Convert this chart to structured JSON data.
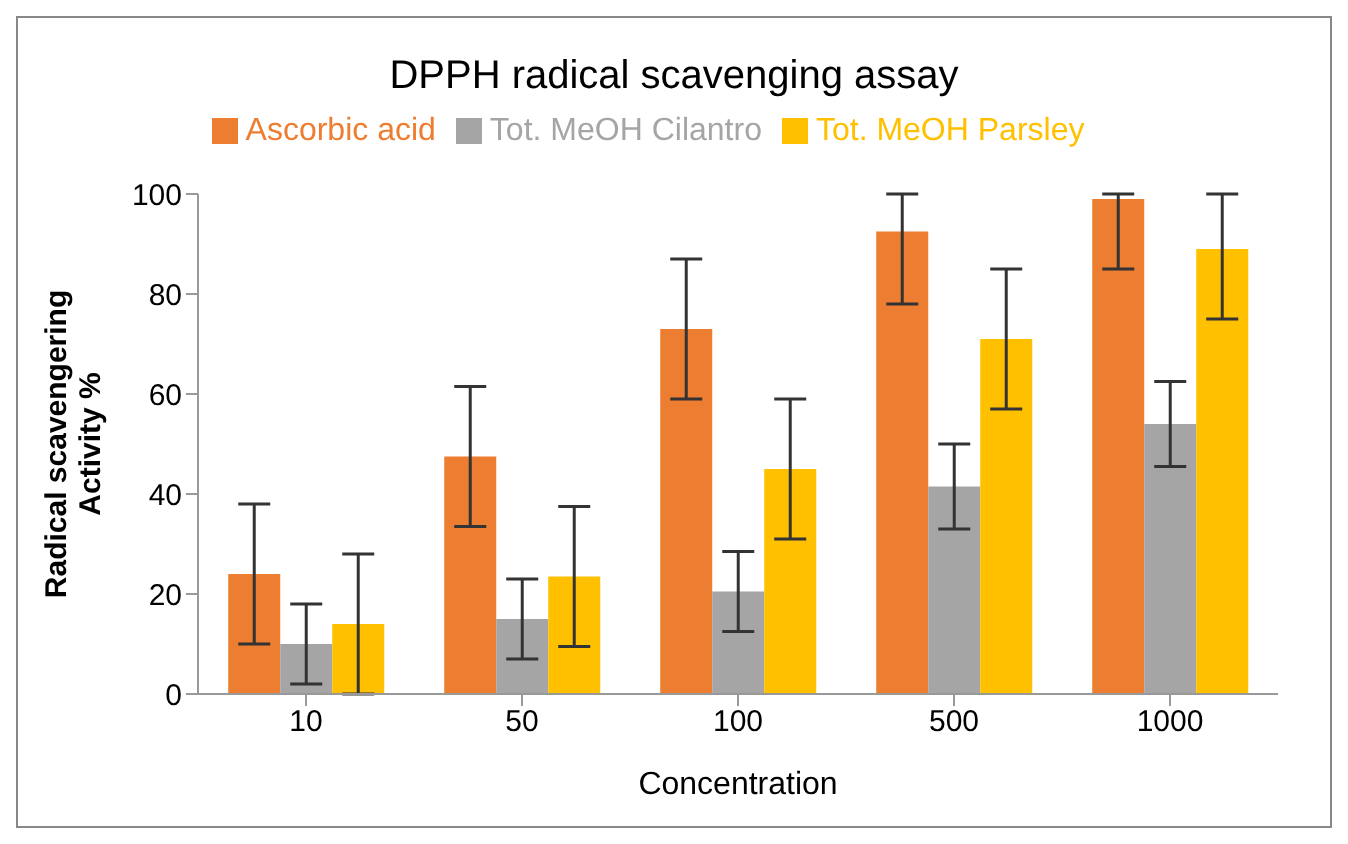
{
  "chart_data": {
    "type": "bar",
    "title": "DPPH radical scavenging assay",
    "xlabel": "Concentration",
    "ylabel": "Radical scavengering Activity %",
    "categories": [
      "10",
      "50",
      "100",
      "500",
      "1000"
    ],
    "series": [
      {
        "name": "Ascorbic acid",
        "color": "#ed7d31",
        "values": [
          24,
          47.5,
          73,
          92.5,
          99
        ],
        "errors": [
          14,
          14,
          14,
          [
            78,
            100
          ],
          [
            85,
            100
          ]
        ]
      },
      {
        "name": "Tot. MeOH Cilantro",
        "color": "#a5a5a5",
        "values": [
          10,
          15,
          20.5,
          41.5,
          54
        ],
        "errors": [
          8,
          8,
          8,
          8.5,
          8.5
        ]
      },
      {
        "name": "Tot. MeOH Parsley",
        "color": "#ffc000",
        "values": [
          14,
          23.5,
          45,
          71,
          89
        ],
        "errors": [
          14,
          14,
          14,
          14,
          [
            75,
            100
          ]
        ]
      }
    ],
    "ylim": [
      0,
      100
    ],
    "yticks": [
      0,
      20,
      40,
      60,
      80,
      100
    ],
    "grid": false,
    "legend": "top"
  }
}
